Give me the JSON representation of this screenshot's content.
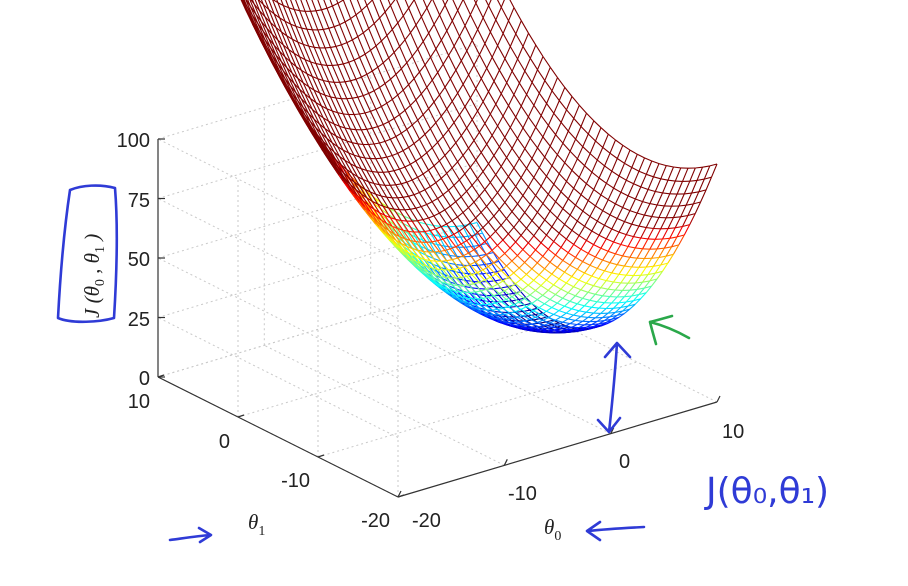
{
  "chart_data": {
    "type": "surface",
    "function": "J = 0.25 * ((theta0 - 10)^2 + theta1^2)",
    "x": {
      "name": "θ",
      "subscript": "0",
      "range": [
        -20,
        10
      ],
      "ticks": [
        -20,
        -10,
        0,
        10
      ]
    },
    "y": {
      "name": "θ",
      "subscript": "1",
      "range": [
        -20,
        10
      ],
      "ticks": [
        -20,
        -10,
        0,
        10
      ]
    },
    "z": {
      "range": [
        0,
        100
      ],
      "ticks": [
        0,
        25,
        50,
        75,
        100
      ],
      "label": {
        "pre": "J (",
        "v0": "θ",
        "s0": "0",
        "sep": " , ",
        "v1": "θ",
        "s1": "1",
        "post": " )"
      }
    },
    "colormap": "jet",
    "grid": true
  },
  "annotations": {
    "handwritten_label": "J(θ₀,θ₁)",
    "ink_color": "#2f3bd6",
    "green_arrow_color": "#2aa84a"
  }
}
